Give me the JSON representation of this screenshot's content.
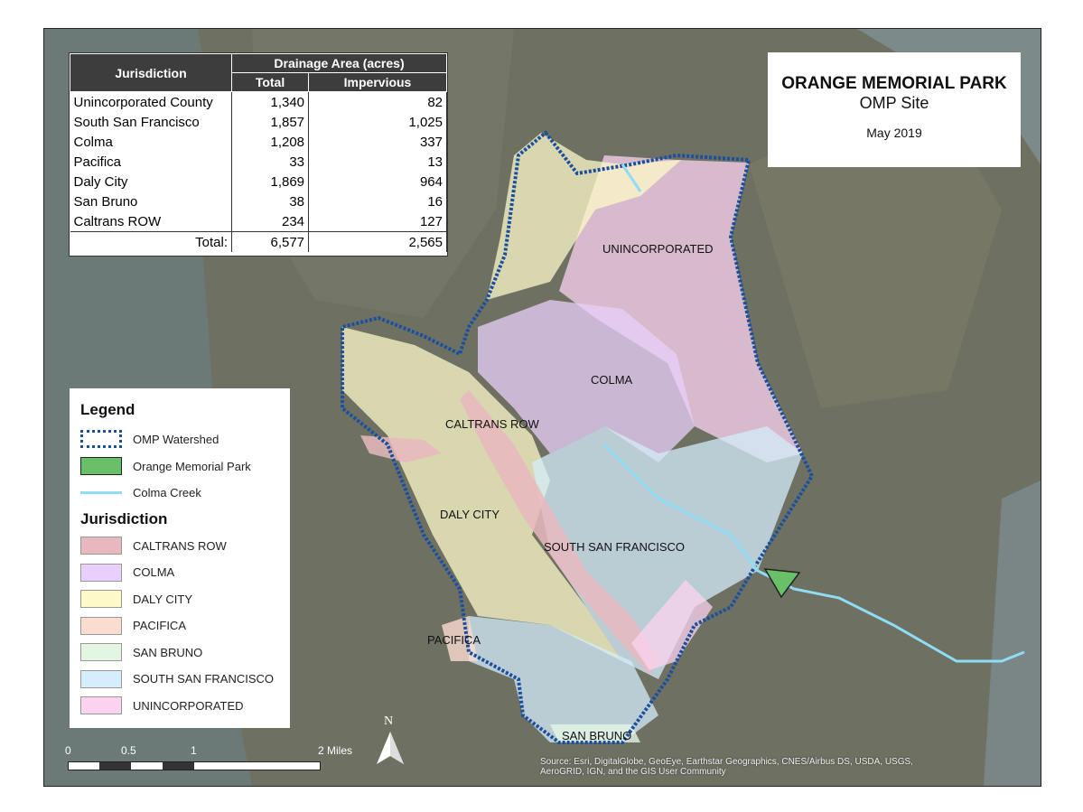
{
  "title": {
    "main": "ORANGE MEMORIAL PARK",
    "sub": "OMP Site",
    "date": "May 2019"
  },
  "table": {
    "col_jurisdiction": "Jurisdiction",
    "col_group": "Drainage Area (acres)",
    "col_total": "Total",
    "col_impervious": "Impervious",
    "rows": [
      {
        "name": "Unincorporated County",
        "total": "1,340",
        "impervious": "82"
      },
      {
        "name": "South San Francisco",
        "total": "1,857",
        "impervious": "1,025"
      },
      {
        "name": "Colma",
        "total": "1,208",
        "impervious": "337"
      },
      {
        "name": "Pacifica",
        "total": "33",
        "impervious": "13"
      },
      {
        "name": "Daly City",
        "total": "1,869",
        "impervious": "964"
      },
      {
        "name": "San Bruno",
        "total": "38",
        "impervious": "16"
      },
      {
        "name": "Caltrans ROW",
        "total": "234",
        "impervious": "127"
      }
    ],
    "total_label": "Total:",
    "total_total": "6,577",
    "total_impervious": "2,565"
  },
  "legend": {
    "heading": "Legend",
    "watershed": "OMP Watershed",
    "park": "Orange Memorial Park",
    "creek": "Colma Creek",
    "jurisdiction_heading": "Jurisdiction",
    "jurisdictions": [
      {
        "label": "CALTRANS ROW",
        "color": "#e8b8be"
      },
      {
        "label": "COLMA",
        "color": "#e9cffb"
      },
      {
        "label": "DALY CITY",
        "color": "#fdf9c9"
      },
      {
        "label": "PACIFICA",
        "color": "#fbdcd1"
      },
      {
        "label": "SAN BRUNO",
        "color": "#e3f6e3"
      },
      {
        "label": "SOUTH SAN FRANCISCO",
        "color": "#d4ecfb"
      },
      {
        "label": "UNINCORPORATED",
        "color": "#fbd3ef"
      }
    ]
  },
  "map_labels": {
    "unincorporated": "UNINCORPORATED",
    "colma": "COLMA",
    "caltrans": "CALTRANS ROW",
    "daly_city": "DALY CITY",
    "south_sf": "SOUTH SAN FRANCISCO",
    "pacifica": "PACIFICA",
    "san_bruno": "SAN BRUNO"
  },
  "scale": {
    "t0": "0",
    "t1": "0.5",
    "t2": "1",
    "t3": "2 Miles"
  },
  "north": "N",
  "attribution": {
    "line1": "Source: Esri, DigitalGlobe, GeoEye, Earthstar Geographics, CNES/Airbus DS, USDA, USGS,",
    "line2": "AeroGRID, IGN, and the GIS User Community"
  },
  "colors": {
    "watershed_outline": "#1a4fa0",
    "park_fill": "#6abf69",
    "creek": "#8fdcf5",
    "ocean": "#6f7c78",
    "land": "#6b6f63"
  }
}
